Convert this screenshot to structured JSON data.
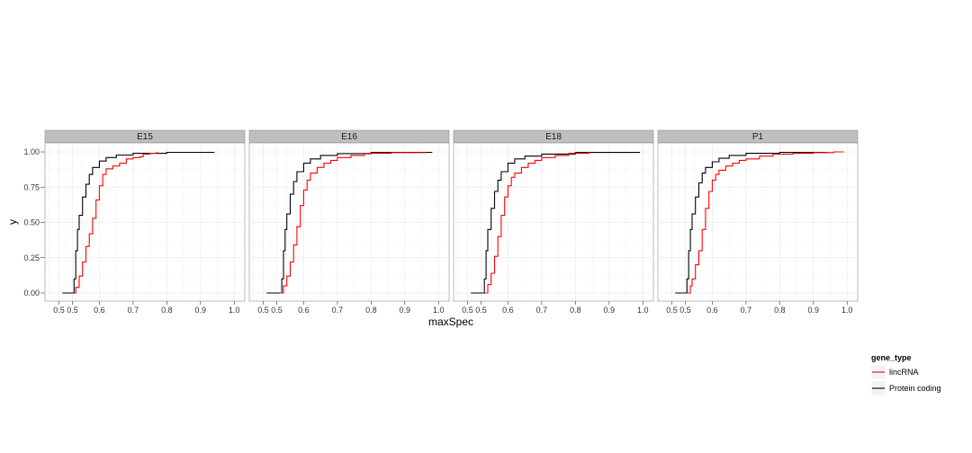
{
  "chart_data": {
    "type": "line",
    "subtype": "ecdf",
    "xlabel": "maxSpec",
    "ylabel": "y",
    "x_ticks": [
      "0.5",
      "0.5",
      "0.6",
      "0.7",
      "0.8",
      "0.9",
      "1.0"
    ],
    "x_tick_values": [
      0.48,
      0.52,
      0.6,
      0.7,
      0.8,
      0.9,
      1.0
    ],
    "y_ticks": [
      "0.00",
      "0.25",
      "0.50",
      "0.75",
      "1.00"
    ],
    "y_tick_values": [
      0,
      0.25,
      0.5,
      0.75,
      1.0
    ],
    "xlim": [
      0.46,
      1.01
    ],
    "ylim": [
      -0.05,
      1.05
    ],
    "grid": true,
    "legend": {
      "title": "gene_type",
      "position": "right",
      "entries": [
        {
          "label": "lincRNA",
          "color": "#ff0000"
        },
        {
          "label": "Protein coding",
          "color": "#000000"
        }
      ]
    },
    "panels": [
      {
        "label": "E15",
        "series": [
          {
            "name": "Protein coding",
            "color": "#000000",
            "points": [
              [
                0.49,
                0
              ],
              [
                0.52,
                0
              ],
              [
                0.525,
                0.1
              ],
              [
                0.53,
                0.3
              ],
              [
                0.535,
                0.45
              ],
              [
                0.54,
                0.55
              ],
              [
                0.55,
                0.68
              ],
              [
                0.56,
                0.77
              ],
              [
                0.57,
                0.84
              ],
              [
                0.58,
                0.89
              ],
              [
                0.6,
                0.935
              ],
              [
                0.62,
                0.96
              ],
              [
                0.65,
                0.978
              ],
              [
                0.7,
                0.99
              ],
              [
                0.8,
                0.997
              ],
              [
                0.94,
                1.0
              ]
            ]
          },
          {
            "name": "lincRNA",
            "color": "#ff0000",
            "points": [
              [
                0.525,
                0
              ],
              [
                0.53,
                0.04
              ],
              [
                0.54,
                0.12
              ],
              [
                0.55,
                0.22
              ],
              [
                0.56,
                0.33
              ],
              [
                0.57,
                0.42
              ],
              [
                0.58,
                0.53
              ],
              [
                0.59,
                0.66
              ],
              [
                0.6,
                0.76
              ],
              [
                0.61,
                0.84
              ],
              [
                0.62,
                0.88
              ],
              [
                0.64,
                0.9
              ],
              [
                0.66,
                0.92
              ],
              [
                0.68,
                0.95
              ],
              [
                0.7,
                0.96
              ],
              [
                0.72,
                0.965
              ],
              [
                0.73,
                0.985
              ],
              [
                0.75,
                0.99
              ],
              [
                0.77,
                1.0
              ]
            ]
          }
        ]
      },
      {
        "label": "E16",
        "series": [
          {
            "name": "Protein coding",
            "color": "#000000",
            "points": [
              [
                0.49,
                0
              ],
              [
                0.53,
                0
              ],
              [
                0.535,
                0.1
              ],
              [
                0.54,
                0.3
              ],
              [
                0.545,
                0.45
              ],
              [
                0.55,
                0.56
              ],
              [
                0.56,
                0.7
              ],
              [
                0.57,
                0.79
              ],
              [
                0.58,
                0.86
              ],
              [
                0.6,
                0.92
              ],
              [
                0.62,
                0.95
              ],
              [
                0.65,
                0.975
              ],
              [
                0.7,
                0.988
              ],
              [
                0.8,
                0.997
              ],
              [
                0.98,
                1.0
              ]
            ]
          },
          {
            "name": "lincRNA",
            "color": "#ff0000",
            "points": [
              [
                0.53,
                0
              ],
              [
                0.54,
                0.05
              ],
              [
                0.55,
                0.12
              ],
              [
                0.56,
                0.22
              ],
              [
                0.57,
                0.34
              ],
              [
                0.58,
                0.47
              ],
              [
                0.59,
                0.62
              ],
              [
                0.6,
                0.73
              ],
              [
                0.61,
                0.8
              ],
              [
                0.62,
                0.85
              ],
              [
                0.64,
                0.89
              ],
              [
                0.66,
                0.92
              ],
              [
                0.68,
                0.94
              ],
              [
                0.7,
                0.96
              ],
              [
                0.74,
                0.975
              ],
              [
                0.78,
                0.99
              ],
              [
                0.86,
                0.995
              ],
              [
                0.96,
                1.0
              ]
            ]
          }
        ]
      },
      {
        "label": "E18",
        "series": [
          {
            "name": "Protein coding",
            "color": "#000000",
            "points": [
              [
                0.49,
                0
              ],
              [
                0.525,
                0
              ],
              [
                0.53,
                0.1
              ],
              [
                0.535,
                0.3
              ],
              [
                0.54,
                0.45
              ],
              [
                0.55,
                0.6
              ],
              [
                0.56,
                0.72
              ],
              [
                0.57,
                0.8
              ],
              [
                0.58,
                0.86
              ],
              [
                0.6,
                0.92
              ],
              [
                0.62,
                0.95
              ],
              [
                0.65,
                0.97
              ],
              [
                0.7,
                0.985
              ],
              [
                0.8,
                0.996
              ],
              [
                0.99,
                1.0
              ]
            ]
          },
          {
            "name": "lincRNA",
            "color": "#ff0000",
            "points": [
              [
                0.53,
                0
              ],
              [
                0.54,
                0.06
              ],
              [
                0.55,
                0.14
              ],
              [
                0.56,
                0.26
              ],
              [
                0.57,
                0.4
              ],
              [
                0.58,
                0.55
              ],
              [
                0.59,
                0.68
              ],
              [
                0.6,
                0.76
              ],
              [
                0.61,
                0.82
              ],
              [
                0.62,
                0.85
              ],
              [
                0.64,
                0.89
              ],
              [
                0.66,
                0.92
              ],
              [
                0.68,
                0.94
              ],
              [
                0.7,
                0.96
              ],
              [
                0.74,
                0.975
              ],
              [
                0.78,
                0.99
              ],
              [
                0.84,
                1.0
              ]
            ]
          }
        ]
      },
      {
        "label": "P1",
        "series": [
          {
            "name": "Protein coding",
            "color": "#000000",
            "points": [
              [
                0.49,
                0
              ],
              [
                0.52,
                0
              ],
              [
                0.525,
                0.1
              ],
              [
                0.53,
                0.3
              ],
              [
                0.535,
                0.45
              ],
              [
                0.54,
                0.56
              ],
              [
                0.55,
                0.68
              ],
              [
                0.56,
                0.78
              ],
              [
                0.57,
                0.85
              ],
              [
                0.58,
                0.89
              ],
              [
                0.6,
                0.93
              ],
              [
                0.62,
                0.955
              ],
              [
                0.65,
                0.975
              ],
              [
                0.7,
                0.99
              ],
              [
                0.8,
                0.997
              ],
              [
                0.94,
                1.0
              ]
            ]
          },
          {
            "name": "lincRNA",
            "color": "#ff0000",
            "points": [
              [
                0.525,
                0
              ],
              [
                0.535,
                0.05
              ],
              [
                0.54,
                0.1
              ],
              [
                0.55,
                0.2
              ],
              [
                0.56,
                0.3
              ],
              [
                0.57,
                0.45
              ],
              [
                0.58,
                0.6
              ],
              [
                0.59,
                0.72
              ],
              [
                0.6,
                0.8
              ],
              [
                0.61,
                0.84
              ],
              [
                0.62,
                0.87
              ],
              [
                0.64,
                0.9
              ],
              [
                0.66,
                0.92
              ],
              [
                0.68,
                0.94
              ],
              [
                0.7,
                0.95
              ],
              [
                0.74,
                0.97
              ],
              [
                0.78,
                0.985
              ],
              [
                0.84,
                0.99
              ],
              [
                0.9,
                0.995
              ],
              [
                0.96,
                1.0
              ],
              [
                0.99,
                1.0
              ]
            ]
          }
        ]
      }
    ]
  }
}
